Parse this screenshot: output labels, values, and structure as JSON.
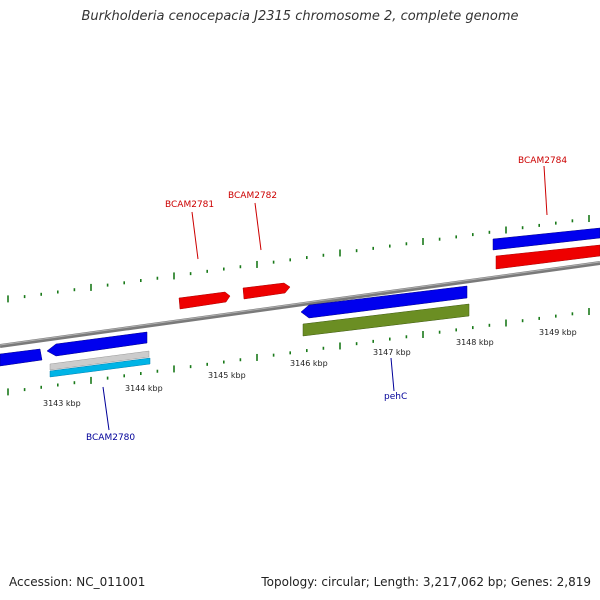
{
  "title": "Burkholderia cenocepacia J2315 chromosome 2, complete genome",
  "footer": {
    "accession": "Accession: NC_011001",
    "summary": "Topology: circular; Length: 3,217,062 bp; Genes: 2,819"
  },
  "colors": {
    "backbone": "#888888",
    "forward_tick": "#1a7a1a",
    "cds_blue": "#0000ee",
    "cds_red": "#ee0000",
    "rna_gray": "#cccccc",
    "rna_cyan": "#00b4e6",
    "feature_olive": "#6b8e23",
    "label_red": "#cc0000",
    "label_blue": "#000099"
  },
  "scale_labels": [
    "3143 kbp",
    "3144 kbp",
    "3145 kbp",
    "3146 kbp",
    "3147 kbp",
    "3148 kbp",
    "3149 kbp"
  ],
  "gene_labels": {
    "bcam2781": "BCAM2781",
    "bcam2782": "BCAM2782",
    "bcam2784": "BCAM2784",
    "bcam2780": "BCAM2780",
    "pehc": "pehC"
  }
}
